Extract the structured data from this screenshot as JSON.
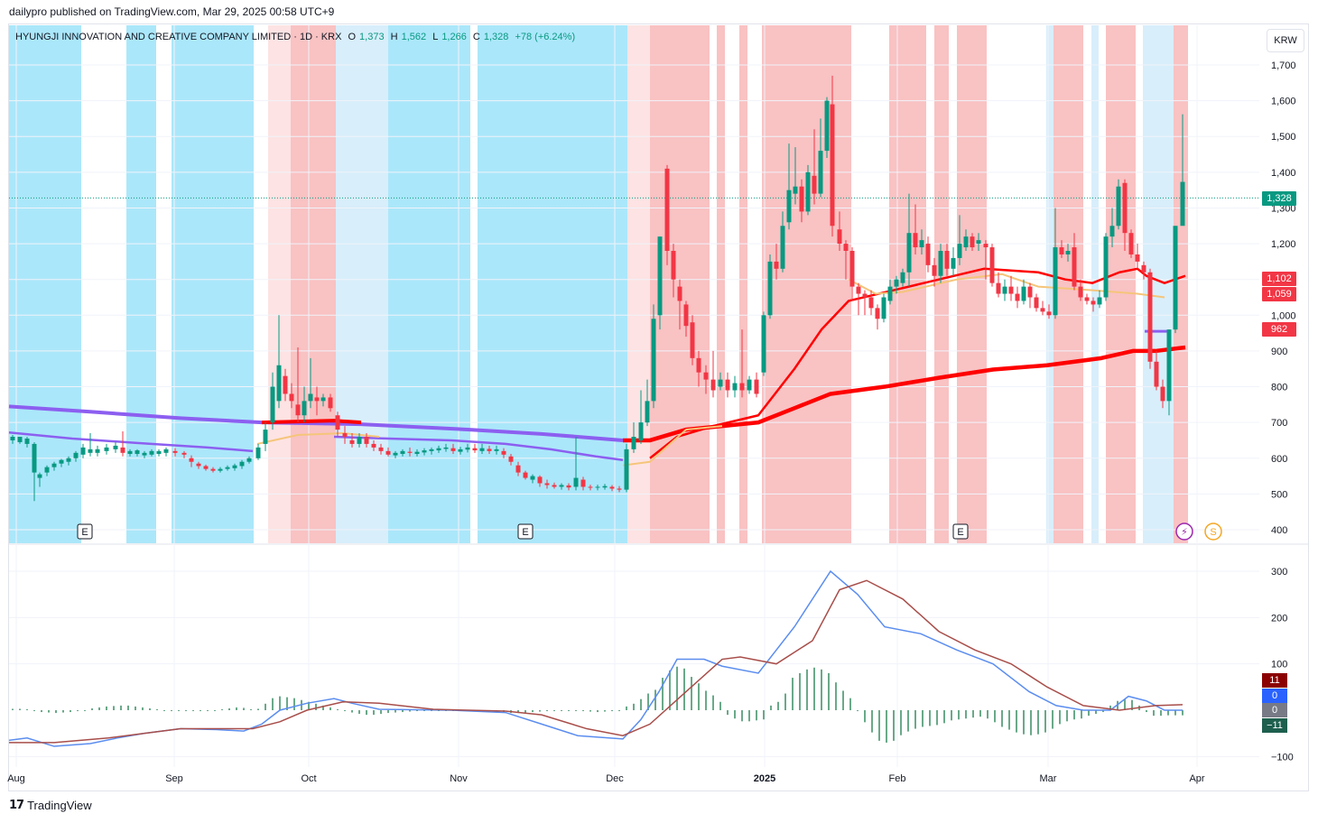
{
  "header": {
    "published": "dailypro published on TradingView.com, Mar 29, 2025 00:58 UTC+9"
  },
  "legend": {
    "symbol": "HYUNGJI INNOVATION AND CREATIVE COMPANY LIMITED · 1D · KRX",
    "open_label": "O",
    "open": "1,373",
    "high_label": "H",
    "high": "1,562",
    "low_label": "L",
    "low": "1,266",
    "close_label": "C",
    "close": "1,328",
    "change": "+78 (+6.24%)"
  },
  "currency": "KRW",
  "footer": {
    "brand": "TradingView"
  },
  "price_tags": {
    "last": "1,328",
    "ma1": "1,102",
    "ma2": "1,059",
    "ma3": "962"
  },
  "indicator_tags": {
    "t1": "11",
    "t2": "0",
    "t3": "0",
    "t4": "−11"
  },
  "colors": {
    "up": "#089981",
    "down": "#f23645",
    "ma_red": "#ff0000",
    "ma_purple": "#8c5ff0",
    "bg_red": "#f9c2c3",
    "bg_lightred": "#fde3e3",
    "bg_blue": "#abe7fa",
    "bg_lightblue": "#d8eefb",
    "macd": "#5b8def",
    "signal": "#a84e4a",
    "hist": "#6aa989"
  },
  "chart_data": {
    "type": "candlestick",
    "price_axis": {
      "ticks": [
        400,
        500,
        600,
        700,
        800,
        900,
        1000,
        1100,
        1200,
        1300,
        1400,
        1500,
        1600,
        1700
      ],
      "tick_labels": [
        "400",
        "500",
        "600",
        "700",
        "800",
        "900",
        "1,000",
        "1,100",
        "1,200",
        "1,300",
        "1,400",
        "1,500",
        "1,600",
        "1,700"
      ]
    },
    "macd_axis": {
      "ticks": [
        -100,
        100,
        200,
        300
      ],
      "tick_labels": [
        "−100",
        "100",
        "200",
        "300"
      ]
    },
    "time_axis": {
      "labels": [
        "Aug",
        "Sep",
        "Oct",
        "Nov",
        "Dec",
        "2025",
        "Feb",
        "Mar",
        "Apr"
      ]
    },
    "last_close": 1328,
    "earnings_markers": [
      "E",
      "E",
      "E"
    ],
    "event_icons": [
      "lightning-icon",
      "dividend-icon"
    ],
    "dividend_label": "S"
  }
}
